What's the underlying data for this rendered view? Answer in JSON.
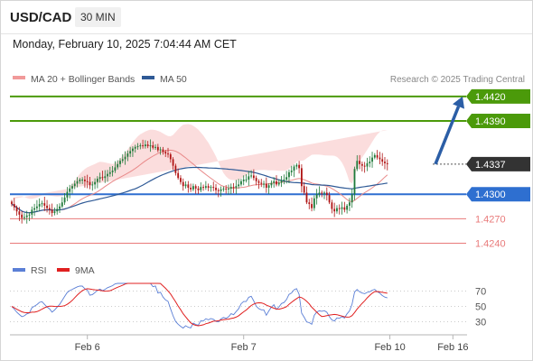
{
  "header": {
    "pair": "USD/CAD",
    "timeframe": "30 MIN"
  },
  "date_line": "Monday, February 10, 2025 7:04:44 AM CET",
  "legend": {
    "bollinger": "MA 20 + Bollinger Bands",
    "ma50": "MA 50",
    "rsi": "RSI",
    "ma9": "9MA"
  },
  "source": "Research © 2025 Trading Central",
  "colors": {
    "up": "#1f7a3a",
    "down": "#b01414",
    "resistance": "#4b9a0a",
    "pivot": "#2e6fd0",
    "support": "#e87a7a",
    "ma50": "#2f5a96",
    "band": "#fad2d2",
    "rsi": "#5b7fd6",
    "ma9": "#e02020",
    "arrow": "#2b5ea6",
    "current_tag": "#333333"
  },
  "chart_data": {
    "type": "candlestick",
    "price_axis": {
      "min": 1.4225,
      "max": 1.4432
    },
    "levels": [
      {
        "name": "resistance-2",
        "value": 1.442,
        "label": "1.4420",
        "kind": "resistance"
      },
      {
        "name": "resistance-1",
        "value": 1.439,
        "label": "1.4390",
        "kind": "resistance"
      },
      {
        "name": "current-price",
        "value": 1.4337,
        "label": "1.4337",
        "kind": "current"
      },
      {
        "name": "pivot",
        "value": 1.43,
        "label": "1.4300",
        "kind": "pivot"
      },
      {
        "name": "support-1",
        "value": 1.427,
        "label": "1.4270",
        "kind": "support"
      },
      {
        "name": "support-2",
        "value": 1.424,
        "label": "1.4240",
        "kind": "support"
      }
    ],
    "x_ticks": [
      "Feb 6",
      "Feb 7",
      "Feb 10",
      "Feb 16"
    ],
    "x_tick_index": [
      30,
      92,
      150,
      175
    ],
    "n_bars": 168,
    "closes": [
      1.4288,
      1.4284,
      1.4279,
      1.4275,
      1.4271,
      1.4272,
      1.4274,
      1.4275,
      1.4281,
      1.4283,
      1.4285,
      1.4288,
      1.4289,
      1.4286,
      1.4283,
      1.4281,
      1.4277,
      1.4279,
      1.4282,
      1.4285,
      1.429,
      1.4296,
      1.4303,
      1.4307,
      1.431,
      1.4313,
      1.4316,
      1.4318,
      1.4318,
      1.4316,
      1.4315,
      1.4311,
      1.4312,
      1.4315,
      1.4319,
      1.4321,
      1.432,
      1.4322,
      1.4325,
      1.4327,
      1.4329,
      1.4333,
      1.4337,
      1.4341,
      1.4343,
      1.4346,
      1.435,
      1.4353,
      1.4356,
      1.4358,
      1.4359,
      1.436,
      1.4359,
      1.4361,
      1.4359,
      1.436,
      1.4357,
      1.4358,
      1.4354,
      1.4355,
      1.4352,
      1.435,
      1.4349,
      1.4343,
      1.4335,
      1.4326,
      1.432,
      1.4315,
      1.431,
      1.4312,
      1.4308,
      1.4306,
      1.431,
      1.4307,
      1.4305,
      1.4309,
      1.4308,
      1.431,
      1.4308,
      1.4309,
      1.4308,
      1.4305,
      1.4304,
      1.4306,
      1.4307,
      1.4306,
      1.4307,
      1.4309,
      1.4308,
      1.431,
      1.4312,
      1.4316,
      1.4318,
      1.4318,
      1.4322,
      1.4323,
      1.432,
      1.4316,
      1.4314,
      1.4313,
      1.4313,
      1.4308,
      1.4311,
      1.4314,
      1.4316,
      1.4312,
      1.4314,
      1.4317,
      1.4318,
      1.4321,
      1.4327,
      1.4329,
      1.4334,
      1.4336,
      1.4332,
      1.431,
      1.4302,
      1.429,
      1.4288,
      1.4283,
      1.4295,
      1.43,
      1.4302,
      1.4301,
      1.4302,
      1.4299,
      1.429,
      1.4282,
      1.4279,
      1.4283,
      1.4282,
      1.4284,
      1.4281,
      1.4286,
      1.429,
      1.43,
      1.4331,
      1.4341,
      1.4337,
      1.4335,
      1.4334,
      1.4338,
      1.434,
      1.4345,
      1.4348,
      1.4345,
      1.4343,
      1.434,
      1.4338,
      1.4337
    ],
    "rsi_axis": {
      "min": 20,
      "max": 80,
      "ticks": [
        70,
        50,
        30
      ]
    }
  }
}
